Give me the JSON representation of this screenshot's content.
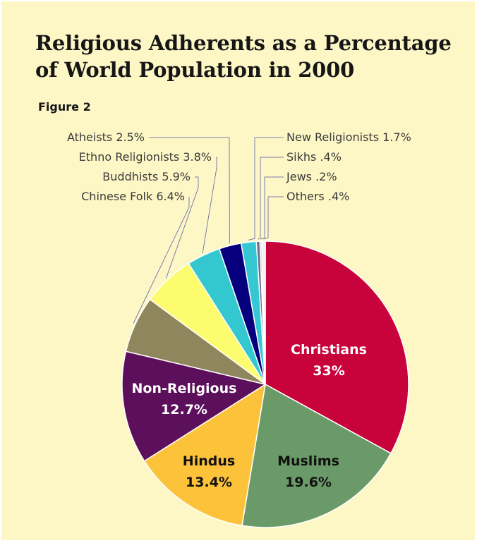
{
  "chart_data": {
    "type": "pie",
    "title_lines": [
      "Religious Adherents as a Percentage",
      "of World Population in 2000"
    ],
    "subtitle": "Figure 2",
    "start_angle_deg": 0,
    "direction": "clockwise",
    "slices": [
      {
        "name": "Christians",
        "value_label": "33%",
        "value": 33.0,
        "color": "#c8023a",
        "label_style": "inside",
        "label_color": "#ffffff"
      },
      {
        "name": "Muslims",
        "value_label": "19.6%",
        "value": 19.6,
        "color": "#6a9a68",
        "label_style": "inside",
        "label_color": "#111111"
      },
      {
        "name": "Hindus",
        "value_label": "13.4%",
        "value": 13.4,
        "color": "#fbc23a",
        "label_style": "inside",
        "label_color": "#111111"
      },
      {
        "name": "Non-Religious",
        "value_label": "12.7%",
        "value": 12.7,
        "color": "#5c0f5a",
        "label_style": "inside",
        "label_color": "#ffffff"
      },
      {
        "name": "Chinese Folk",
        "value_label": "6.4%",
        "value": 6.4,
        "color": "#8f865e",
        "label_style": "outside-left"
      },
      {
        "name": "Buddhists",
        "value_label": "5.9%",
        "value": 5.9,
        "color": "#fdfc6e",
        "label_style": "outside-left"
      },
      {
        "name": "Ethno Religionists",
        "value_label": "3.8%",
        "value": 3.8,
        "color": "#33c8cf",
        "label_style": "outside-left"
      },
      {
        "name": "Atheists",
        "value_label": "2.5%",
        "value": 2.5,
        "color": "#07007e",
        "label_style": "outside-left"
      },
      {
        "name": "New Religionists",
        "value_label": "1.7%",
        "value": 1.7,
        "color": "#35c8d4",
        "label_style": "outside-right"
      },
      {
        "name": "Sikhs",
        "value_label": ".4%",
        "value": 0.4,
        "color": "#6f6f8f",
        "label_style": "outside-right"
      },
      {
        "name": "Jews",
        "value_label": ".2%",
        "value": 0.2,
        "color": "#c8d0f0",
        "label_style": "outside-right"
      },
      {
        "name": "Others",
        "value_label": ".4%",
        "value": 0.4,
        "color": "#f0f0f0",
        "label_style": "outside-right"
      }
    ]
  }
}
